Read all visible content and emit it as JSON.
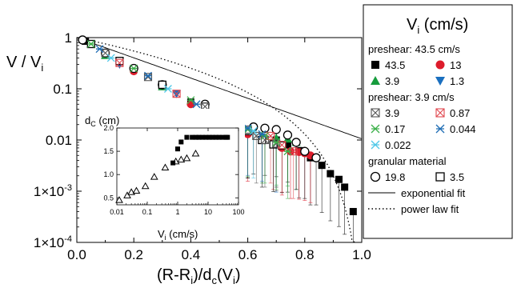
{
  "chart_data": [
    {
      "type": "scatter",
      "title": "",
      "xlabel_main": "(R-R",
      "xlabel_sub1": "i",
      "xlabel_mid": ")/d",
      "xlabel_sub2": "c",
      "xlabel_mid2": "(V",
      "xlabel_sub3": "i",
      "xlabel_end": ")",
      "ylabel_main": "V / V",
      "ylabel_sub": "i",
      "x_scale": "linear",
      "y_scale": "log",
      "xlim": [
        0.0,
        1.0
      ],
      "ylim": [
        0.0001,
        1
      ],
      "x_ticks": [
        "0.0",
        "0.2",
        "0.4",
        "0.6",
        "0.8",
        "1.0"
      ],
      "y_ticks": [
        {
          "value": 1,
          "label": "1"
        },
        {
          "value": 0.1,
          "label": "0.1"
        },
        {
          "value": 0.01,
          "label": "0.01"
        },
        {
          "value": 0.001,
          "base": "1×10",
          "exp": "-3"
        },
        {
          "value": 0.0001,
          "base": "1×10",
          "exp": "-4"
        }
      ],
      "legend": {
        "placement": "right",
        "title_main": "V",
        "title_sub": "i",
        "title_end": " (cm/s)",
        "groups": [
          {
            "heading": "preshear: 43.5 cm/s",
            "items": [
              {
                "label": "43.5",
                "marker": "square-filled",
                "color": "#000000"
              },
              {
                "label": "13",
                "marker": "circle-filled",
                "color": "#dd1c2b"
              },
              {
                "label": "3.9",
                "marker": "triangle-up-filled",
                "color": "#169c3d"
              },
              {
                "label": "1.3",
                "marker": "triangle-down-filled",
                "color": "#1a6fbf"
              }
            ]
          },
          {
            "heading": "preshear: 3.9 cm/s",
            "items": [
              {
                "label": "3.9",
                "marker": "square-cross",
                "color": "#555555"
              },
              {
                "label": "0.87",
                "marker": "square-cross",
                "color": "#e0474f"
              },
              {
                "label": "0.17",
                "marker": "x-cross",
                "color": "#3cb04a"
              },
              {
                "label": "0.044",
                "marker": "x-cross",
                "color": "#1f6db5"
              },
              {
                "label": "0.022",
                "marker": "x-cross",
                "color": "#4fc7e8"
              }
            ]
          },
          {
            "heading": "granular material",
            "items": [
              {
                "label": "19.8",
                "marker": "circle-open",
                "color": "#000000"
              },
              {
                "label": "3.5",
                "marker": "square-open",
                "color": "#000000"
              }
            ]
          }
        ],
        "lines": [
          {
            "label": "exponential fit",
            "style": "solid"
          },
          {
            "label": "power law fit",
            "style": "dotted"
          }
        ]
      },
      "series": [
        {
          "marker": "square-filled",
          "color": "#000000",
          "x": [
            0.03,
            0.1,
            0.2,
            0.3,
            0.4,
            0.5,
            0.6,
            0.7,
            0.74,
            0.78,
            0.82,
            0.86,
            0.89,
            0.92,
            0.94,
            0.97
          ],
          "y": [
            0.85,
            0.5,
            0.25,
            0.12,
            0.055,
            0.028,
            0.015,
            0.01,
            0.008,
            0.0062,
            0.0045,
            0.0032,
            0.0022,
            0.0017,
            0.0012,
            0.0004
          ]
        },
        {
          "marker": "circle-filled",
          "color": "#dd1c2b",
          "x": [
            0.05,
            0.2,
            0.4,
            0.6,
            0.69,
            0.72,
            0.75,
            0.78,
            0.8,
            0.82
          ],
          "y": [
            0.75,
            0.22,
            0.05,
            0.013,
            0.009,
            0.007,
            0.006,
            0.0058,
            0.0055,
            0.005
          ]
        },
        {
          "marker": "triangle-up-filled",
          "color": "#169c3d",
          "x": [
            0.1,
            0.3,
            0.5,
            0.65,
            0.7,
            0.74,
            0.77
          ],
          "y": [
            0.45,
            0.11,
            0.026,
            0.012,
            0.011,
            0.0105,
            0.009
          ]
        },
        {
          "marker": "triangle-down-filled",
          "color": "#1a6fbf",
          "x": [
            0.15,
            0.35,
            0.55,
            0.7
          ],
          "y": [
            0.3,
            0.08,
            0.02,
            0.008
          ]
        },
        {
          "marker": "circle-open",
          "color": "#000000",
          "x": [
            0.02,
            0.1,
            0.2,
            0.3,
            0.45,
            0.55,
            0.62,
            0.66,
            0.7,
            0.74,
            0.77,
            0.8,
            0.84
          ],
          "y": [
            0.9,
            0.5,
            0.25,
            0.12,
            0.05,
            0.025,
            0.018,
            0.017,
            0.016,
            0.0125,
            0.009,
            0.006,
            0.0045
          ]
        },
        {
          "marker": "square-open",
          "color": "#000000",
          "x": [
            0.05,
            0.15,
            0.3,
            0.45,
            0.55,
            0.6,
            0.65,
            0.69,
            0.72
          ],
          "y": [
            0.75,
            0.35,
            0.12,
            0.045,
            0.025,
            0.015,
            0.01,
            0.0082,
            0.0078
          ]
        },
        {
          "marker": "square-cross",
          "color": "#555555",
          "x": [
            0.1,
            0.25,
            0.45,
            0.6,
            0.63,
            0.66,
            0.7
          ],
          "y": [
            0.5,
            0.17,
            0.045,
            0.016,
            0.012,
            0.01,
            0.0085
          ]
        },
        {
          "marker": "square-cross",
          "color": "#e0474f",
          "x": [
            0.15,
            0.35,
            0.55,
            0.68,
            0.72,
            0.76
          ],
          "y": [
            0.32,
            0.08,
            0.022,
            0.012,
            0.008,
            0.006
          ]
        },
        {
          "marker": "x-cross",
          "color": "#3cb04a",
          "x": [
            0.05,
            0.2,
            0.4,
            0.6,
            0.66,
            0.7,
            0.74
          ],
          "y": [
            0.75,
            0.25,
            0.06,
            0.016,
            0.012,
            0.009,
            0.006
          ]
        },
        {
          "marker": "x-cross",
          "color": "#1f6db5",
          "x": [
            0.08,
            0.25,
            0.42,
            0.6,
            0.65
          ],
          "y": [
            0.6,
            0.18,
            0.05,
            0.017,
            0.013
          ]
        },
        {
          "marker": "x-cross",
          "color": "#4fc7e8",
          "x": [
            0.12,
            0.32,
            0.5,
            0.62
          ],
          "y": [
            0.4,
            0.1,
            0.03,
            0.015
          ]
        }
      ],
      "fits": [
        {
          "name": "exponential fit",
          "style": "solid",
          "function": "exp(-4.55*x)"
        },
        {
          "name": "power law fit",
          "style": "dotted",
          "function": "(1-x)^2.7"
        }
      ]
    },
    {
      "type": "scatter",
      "title": "",
      "ylabel_main": "d",
      "ylabel_sub": "C",
      "ylabel_end": " (cm)",
      "xlabel_main": "V",
      "xlabel_sub": "i",
      "xlabel_end": " (cm/s)",
      "x_scale": "log",
      "xlim": [
        0.01,
        100
      ],
      "ylim": [
        0.35,
        2.0
      ],
      "x_ticks": [
        "0.01",
        "0.1",
        "1",
        "10",
        "100"
      ],
      "y_ticks": [
        "0.5",
        "1.0",
        "1.5",
        "2.0"
      ],
      "series": [
        {
          "marker": "triangle-up-open",
          "color": "#000000",
          "x": [
            0.012,
            0.022,
            0.03,
            0.044,
            0.087,
            0.17,
            0.39,
            0.87,
            1.3,
            2.0,
            3.9
          ],
          "y": [
            0.45,
            0.55,
            0.62,
            0.65,
            0.75,
            0.95,
            1.15,
            1.28,
            1.32,
            1.35,
            1.45
          ]
        },
        {
          "marker": "square-filled",
          "color": "#000000",
          "x": [
            0.7,
            1.0,
            1.3,
            2.0,
            3.0,
            4.0,
            5.0,
            6.5,
            8.5,
            11,
            14,
            18,
            23,
            30,
            39,
            43.5
          ],
          "y": [
            1.25,
            1.55,
            1.7,
            1.8,
            1.8,
            1.8,
            1.8,
            1.8,
            1.8,
            1.8,
            1.8,
            1.8,
            1.8,
            1.8,
            1.8,
            1.8
          ]
        }
      ]
    }
  ]
}
